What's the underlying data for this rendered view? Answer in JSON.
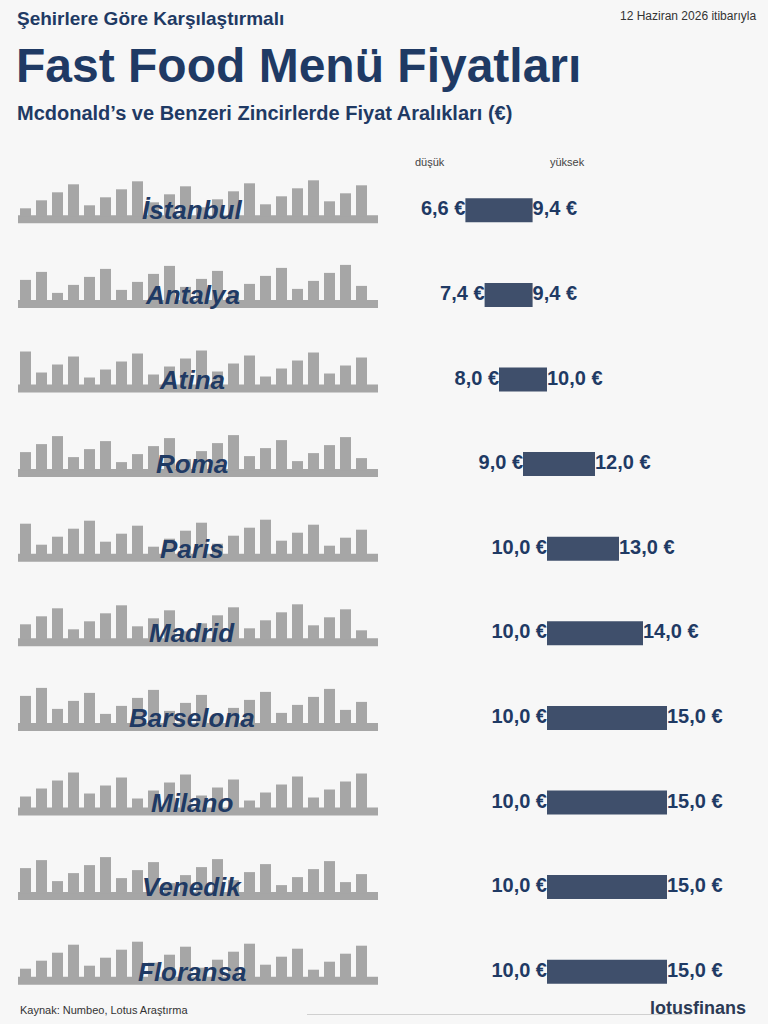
{
  "chart_data": {
    "type": "range",
    "orientation": "horizontal",
    "title": "Fast Food Menü Fiyatları",
    "subtitle": "Mcdonald’s ve Benzeri Zincirlerde Fiyat Aralıkları (€)",
    "annotations": [
      "Şehirlere Göre Karşılaştırmalı",
      "12 Haziran 2026 itibarıyla",
      "Kaynak: Numbeo, Lotus Araştırma",
      "lotusfinans"
    ],
    "categories": [
      "İstanbul",
      "Antalya",
      "Atina",
      "Roma",
      "Paris",
      "Madrid",
      "Barselona",
      "Milano",
      "Venedik",
      "Floransa"
    ],
    "series": [
      {
        "name": "düşük",
        "values": [
          6.6,
          7.4,
          8.0,
          9.0,
          10.0,
          10.0,
          10.0,
          10.0,
          10.0,
          10.0
        ],
        "value_labels": [
          "6,6 €",
          "7,4 €",
          "8,0 €",
          "9,0 €",
          "10,0 €",
          "10,0 €",
          "10,0 €",
          "10,0 €",
          "10,0 €",
          "10,0 €"
        ]
      },
      {
        "name": "yüksek",
        "values": [
          9.4,
          9.4,
          10.0,
          12.0,
          13.0,
          14.0,
          15.0,
          15.0,
          15.0,
          15.0
        ],
        "value_labels": [
          "9,4 €",
          "9,4 €",
          "10,0 €",
          "12,0 €",
          "13,0 €",
          "14,0 €",
          "15,0 €",
          "15,0 €",
          "15,0 €",
          "15,0 €"
        ]
      }
    ],
    "color": "#3f4f6b",
    "xlim": [
      0,
      16
    ],
    "grid": false,
    "data_labels": true,
    "tick_labels": false
  }
}
